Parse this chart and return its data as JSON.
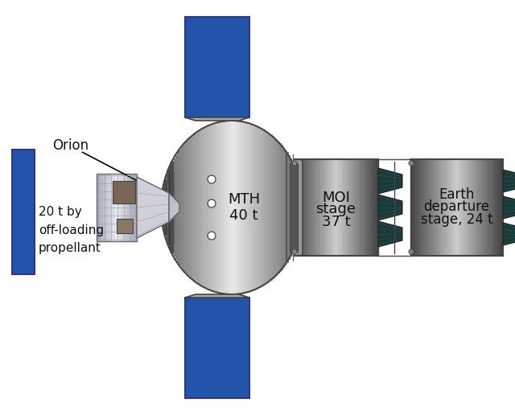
{
  "background_color": "#ffffff",
  "blue_color": "#2255aa",
  "text_color": "#111111",
  "border_color": "#444444",
  "gray_dark": "#555555",
  "gray_mid": "#888888",
  "gray_light": "#bbbbbb",
  "gray_lighter": "#d8d8d8",
  "gray_lightest": "#eeeeee",
  "labels": {
    "orion": "Orion",
    "offload": "20 t by\noff-loading\npropellant",
    "mth": "MTH\n40 t",
    "moi": "MOI\nstage\n37 t",
    "earth_dep": "Earth\ndeparture\nstage, 24 t"
  },
  "figsize": [
    6.4,
    5.16
  ],
  "dpi": 100
}
